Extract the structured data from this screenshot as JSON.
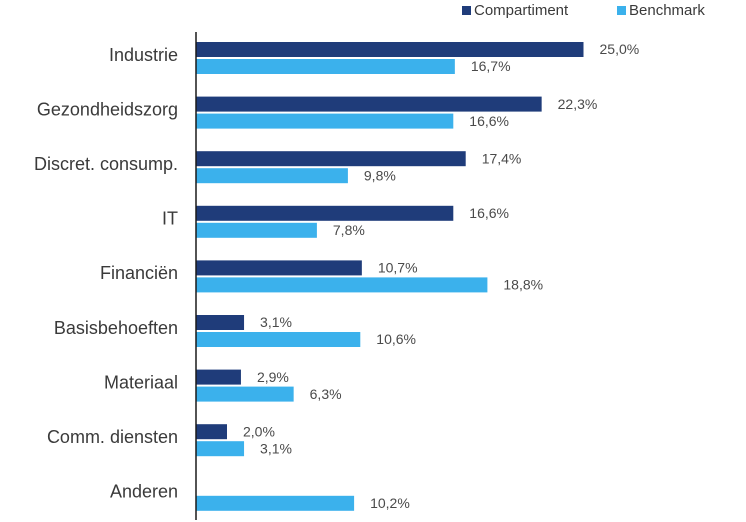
{
  "chart_data": {
    "type": "bar",
    "orientation": "horizontal",
    "title": "",
    "xlabel": "",
    "ylabel": "",
    "categories": [
      "Industrie",
      "Gezondheidszorg",
      "Discret. consump.",
      "IT",
      "Financiën",
      "Basisbehoeften",
      "Materiaal",
      "Comm. diensten",
      "Anderen"
    ],
    "series": [
      {
        "name": "Compartiment",
        "color": "#1f3c7a",
        "values": [
          25.0,
          22.3,
          17.4,
          16.6,
          10.7,
          3.1,
          2.9,
          2.0,
          null
        ],
        "labels": [
          "25,0%",
          "22,3%",
          "17,4%",
          "16,6%",
          "10,7%",
          "3,1%",
          "2,9%",
          "2,0%",
          ""
        ]
      },
      {
        "name": "Benchmark",
        "color": "#3bb1ec",
        "values": [
          16.7,
          16.6,
          9.8,
          7.8,
          18.8,
          10.6,
          6.3,
          3.1,
          10.2
        ],
        "labels": [
          "16,7%",
          "16,6%",
          "9,8%",
          "7,8%",
          "18,8%",
          "10,6%",
          "6,3%",
          "3,1%",
          "10,2%"
        ]
      }
    ],
    "xlim": [
      0,
      30
    ],
    "grid": false,
    "legend_position": "top-right"
  }
}
